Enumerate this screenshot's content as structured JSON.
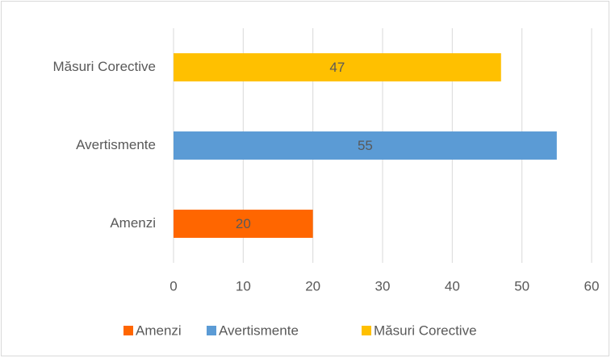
{
  "chart_data": {
    "type": "bar",
    "orientation": "horizontal",
    "categories": [
      "Amenzi",
      "Avertismente",
      "Măsuri Corective"
    ],
    "values": [
      20,
      55,
      47
    ],
    "colors": [
      "#ff6600",
      "#5b9bd5",
      "#ffc000"
    ],
    "xlim": [
      0,
      60
    ],
    "xticks": [
      0,
      10,
      20,
      30,
      40,
      50,
      60
    ],
    "grid": true,
    "legend": "bottom"
  }
}
